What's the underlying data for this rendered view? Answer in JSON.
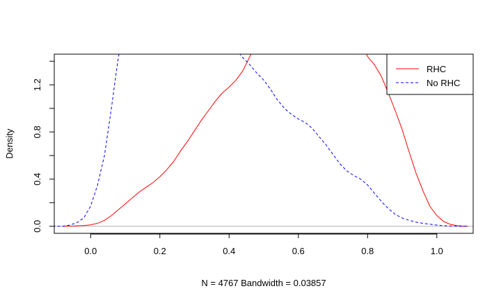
{
  "chart_data": {
    "type": "line",
    "title": "",
    "xlabel": "N = 4767   Bandwidth = 0.03857",
    "ylabel": "Density",
    "xlim": [
      -0.105,
      1.105
    ],
    "ylim": [
      -0.06,
      1.46
    ],
    "x_ticks": [
      0.0,
      0.2,
      0.4,
      0.6,
      0.8,
      1.0
    ],
    "x_tick_labels": [
      "0.0",
      "0.2",
      "0.4",
      "0.6",
      "0.8",
      "1.0"
    ],
    "y_ticks": [
      0.0,
      0.4,
      0.8,
      1.2
    ],
    "y_tick_labels": [
      "0.0",
      "0.4",
      "0.8",
      "1.2"
    ],
    "y_minor_ticks": [
      0.2,
      0.6,
      1.0,
      1.4
    ],
    "baseline": 0,
    "grid": false,
    "legend_position": "top-right",
    "series": [
      {
        "name": "RHC",
        "color": "#ff0000",
        "dash": "solid",
        "points": [
          [
            -0.08,
            0.0
          ],
          [
            -0.05,
            0.002
          ],
          [
            -0.02,
            0.006
          ],
          [
            0.0,
            0.012
          ],
          [
            0.02,
            0.025
          ],
          [
            0.04,
            0.05
          ],
          [
            0.06,
            0.09
          ],
          [
            0.08,
            0.14
          ],
          [
            0.1,
            0.19
          ],
          [
            0.12,
            0.24
          ],
          [
            0.14,
            0.29
          ],
          [
            0.16,
            0.33
          ],
          [
            0.18,
            0.37
          ],
          [
            0.2,
            0.42
          ],
          [
            0.22,
            0.48
          ],
          [
            0.24,
            0.55
          ],
          [
            0.26,
            0.64
          ],
          [
            0.28,
            0.72
          ],
          [
            0.3,
            0.81
          ],
          [
            0.32,
            0.9
          ],
          [
            0.34,
            0.98
          ],
          [
            0.36,
            1.06
          ],
          [
            0.38,
            1.13
          ],
          [
            0.4,
            1.18
          ],
          [
            0.42,
            1.24
          ],
          [
            0.44,
            1.32
          ],
          [
            0.46,
            1.44
          ],
          [
            0.47,
            1.5
          ]
        ]
      },
      {
        "name": "RHC",
        "color": "#ff0000",
        "dash": "solid",
        "points": [
          [
            0.79,
            1.5
          ],
          [
            0.8,
            1.44
          ],
          [
            0.82,
            1.37
          ],
          [
            0.84,
            1.27
          ],
          [
            0.86,
            1.13
          ],
          [
            0.88,
            0.98
          ],
          [
            0.9,
            0.82
          ],
          [
            0.92,
            0.63
          ],
          [
            0.94,
            0.45
          ],
          [
            0.96,
            0.3
          ],
          [
            0.98,
            0.17
          ],
          [
            1.0,
            0.09
          ],
          [
            1.02,
            0.04
          ],
          [
            1.04,
            0.015
          ],
          [
            1.06,
            0.005
          ],
          [
            1.08,
            0.001
          ],
          [
            1.09,
            0.0
          ]
        ]
      },
      {
        "name": "No RHC",
        "color": "#0000ff",
        "dash": "dashed",
        "points": [
          [
            -0.11,
            0.0
          ],
          [
            -0.08,
            0.0
          ],
          [
            -0.06,
            0.01
          ],
          [
            -0.04,
            0.03
          ],
          [
            -0.02,
            0.07
          ],
          [
            0.0,
            0.17
          ],
          [
            0.02,
            0.35
          ],
          [
            0.04,
            0.6
          ],
          [
            0.05,
            0.8
          ],
          [
            0.06,
            1.0
          ],
          [
            0.07,
            1.22
          ],
          [
            0.08,
            1.43
          ],
          [
            0.085,
            1.5
          ]
        ]
      },
      {
        "name": "No RHC",
        "color": "#0000ff",
        "dash": "dashed",
        "points": [
          [
            0.42,
            1.5
          ],
          [
            0.44,
            1.43
          ],
          [
            0.46,
            1.37
          ],
          [
            0.48,
            1.3
          ],
          [
            0.5,
            1.24
          ],
          [
            0.52,
            1.16
          ],
          [
            0.54,
            1.07
          ],
          [
            0.56,
            1.0
          ],
          [
            0.58,
            0.95
          ],
          [
            0.6,
            0.91
          ],
          [
            0.62,
            0.88
          ],
          [
            0.64,
            0.83
          ],
          [
            0.66,
            0.76
          ],
          [
            0.68,
            0.69
          ],
          [
            0.7,
            0.61
          ],
          [
            0.72,
            0.53
          ],
          [
            0.74,
            0.47
          ],
          [
            0.76,
            0.43
          ],
          [
            0.78,
            0.4
          ],
          [
            0.8,
            0.35
          ],
          [
            0.82,
            0.28
          ],
          [
            0.84,
            0.21
          ],
          [
            0.86,
            0.15
          ],
          [
            0.88,
            0.1
          ],
          [
            0.9,
            0.07
          ],
          [
            0.92,
            0.05
          ],
          [
            0.94,
            0.035
          ],
          [
            0.96,
            0.025
          ],
          [
            0.98,
            0.017
          ],
          [
            1.0,
            0.01
          ],
          [
            1.02,
            0.005
          ],
          [
            1.04,
            0.002
          ],
          [
            1.06,
            0.0
          ],
          [
            1.09,
            0.0
          ]
        ]
      }
    ],
    "legend": [
      {
        "label": "RHC",
        "color": "#ff0000",
        "dash": "solid"
      },
      {
        "label": "No RHC",
        "color": "#0000ff",
        "dash": "dashed"
      }
    ]
  }
}
